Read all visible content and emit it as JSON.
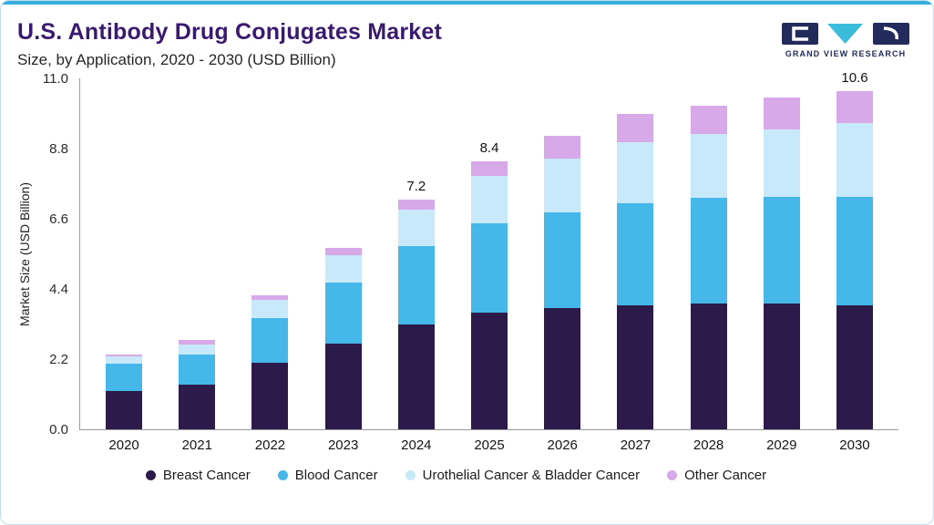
{
  "frame": {
    "accent_color": "#36afdc"
  },
  "header": {
    "title": "U.S. Antibody Drug Conjugates Market",
    "subtitle": "Size, by Application, 2020 - 2030 (USD Billion)",
    "logo": {
      "text": "GRAND VIEW RESEARCH"
    }
  },
  "chart_data": {
    "type": "bar",
    "stacked": true,
    "title": "U.S. Antibody Drug Conjugates Market Size, by Application, 2020 - 2030 (USD Billion)",
    "ylabel": "Market Size (USD Billion)",
    "ylim": [
      0,
      11
    ],
    "yticks": [
      0,
      2.2,
      4.4,
      6.6,
      8.8,
      11
    ],
    "ytick_labels": [
      "0.0",
      "2.2",
      "4.4",
      "6.6",
      "8.8",
      "11.0"
    ],
    "categories": [
      "2020",
      "2021",
      "2022",
      "2023",
      "2024",
      "2025",
      "2026",
      "2027",
      "2028",
      "2029",
      "2030"
    ],
    "series": [
      {
        "name": "Breast Cancer",
        "color": "#2b1a4a",
        "values": [
          1.2,
          1.4,
          2.1,
          2.7,
          3.3,
          3.65,
          3.8,
          3.9,
          3.95,
          3.95,
          3.9
        ]
      },
      {
        "name": "Blood Cancer",
        "color": "#45b8e9",
        "values": [
          0.85,
          0.95,
          1.4,
          1.9,
          2.45,
          2.8,
          3.0,
          3.2,
          3.3,
          3.35,
          3.4
        ]
      },
      {
        "name": "Urothelial Cancer & Bladder Cancer",
        "color": "#c7e9f9",
        "values": [
          0.25,
          0.3,
          0.55,
          0.85,
          1.15,
          1.5,
          1.7,
          1.9,
          2.0,
          2.1,
          2.3
        ]
      },
      {
        "name": "Other Cancer",
        "color": "#d7a9e8",
        "values": [
          0.05,
          0.15,
          0.15,
          0.25,
          0.3,
          0.45,
          0.7,
          0.9,
          0.9,
          1.0,
          1.0
        ]
      }
    ],
    "bar_labels": {
      "2024": "7.2",
      "2025": "8.4",
      "2030": "10.6"
    },
    "legend_position": "bottom",
    "grid": false
  }
}
